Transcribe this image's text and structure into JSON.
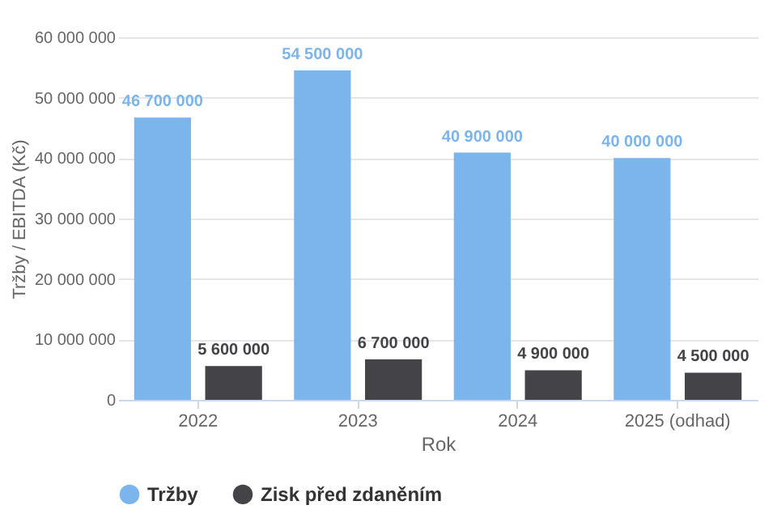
{
  "chart_data": {
    "type": "bar",
    "xlabel": "Rok",
    "ylabel": "Tržby / EBITDA (Kč)",
    "categories": [
      "2022",
      "2023",
      "2024",
      "2025 (odhad)"
    ],
    "series": [
      {
        "name": "Tržby",
        "color": "#7cb5ec",
        "values": [
          46700000,
          54500000,
          40900000,
          40000000
        ],
        "value_labels": [
          "46 700 000",
          "54 500 000",
          "40 900 000",
          "40 000 000"
        ]
      },
      {
        "name": "Zisk před zdaněním",
        "color": "#434348",
        "values": [
          5600000,
          6700000,
          4900000,
          4500000
        ],
        "value_labels": [
          "5 600 000",
          "6 700 000",
          "4 900 000",
          "4 500 000"
        ]
      }
    ],
    "ylim": [
      0,
      60000000
    ],
    "yticks": [
      {
        "value": 0,
        "label": "0"
      },
      {
        "value": 10000000,
        "label": "10 000 000"
      },
      {
        "value": 20000000,
        "label": "20 000 000"
      },
      {
        "value": 30000000,
        "label": "30 000 000"
      },
      {
        "value": 40000000,
        "label": "40 000 000"
      },
      {
        "value": 50000000,
        "label": "50 000 000"
      },
      {
        "value": 60000000,
        "label": "60 000 000"
      }
    ],
    "grid": "y",
    "legend": "bottom",
    "marker": "circle"
  }
}
